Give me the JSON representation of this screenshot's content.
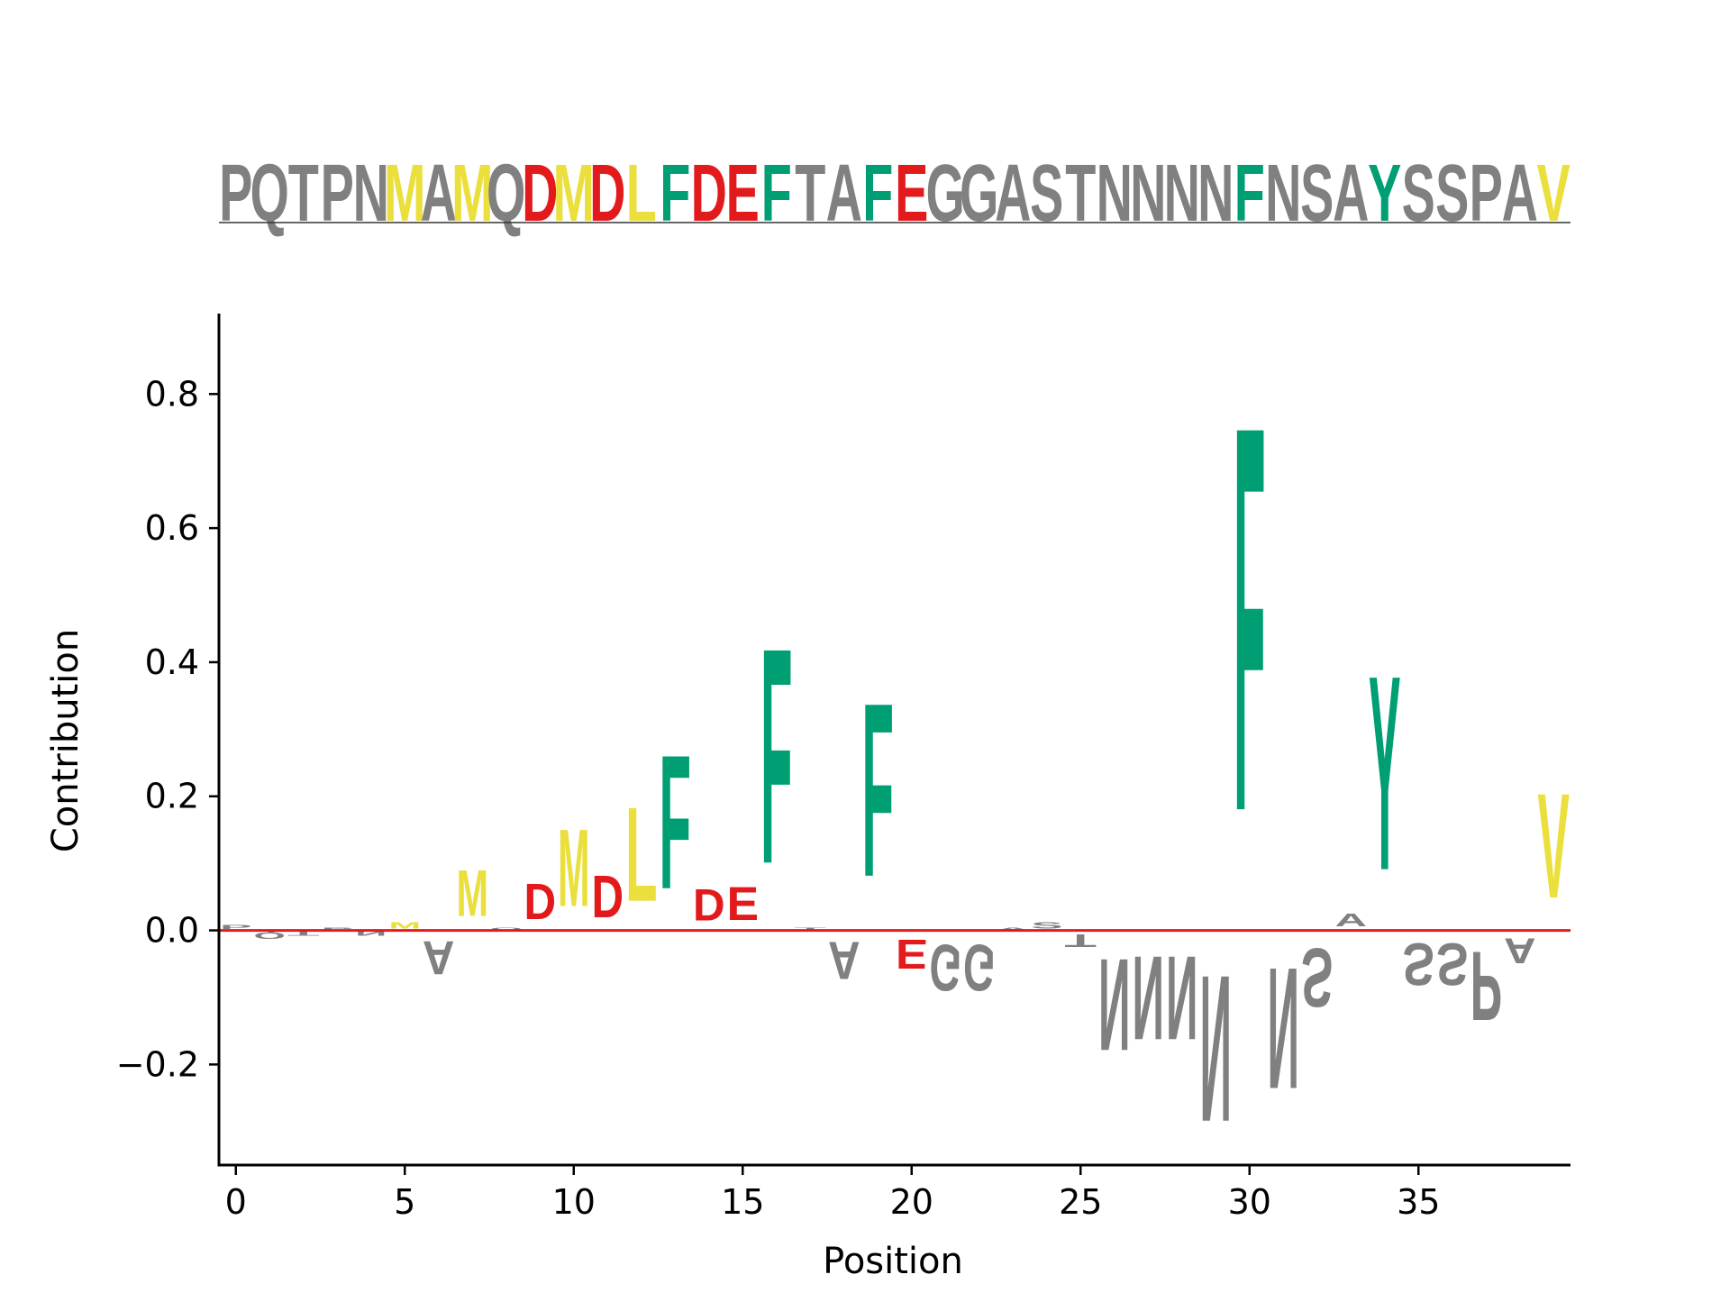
{
  "chart_data": {
    "type": "sequence_logo",
    "sequence": "PQTPNMAMQDMDLFDEFTAFEGGASTNNNNFNSAYSSPAV",
    "xlabel": "Position",
    "ylabel": "Contribution",
    "xlim": [
      -0.5,
      39.5
    ],
    "ylim": [
      -0.35,
      0.92
    ],
    "xticks": [
      0,
      5,
      10,
      15,
      20,
      25,
      30,
      35
    ],
    "yticks": [
      -0.2,
      0.0,
      0.2,
      0.4,
      0.6,
      0.8
    ],
    "ytick_labels": [
      "−0.2",
      "0.0",
      "0.2",
      "0.4",
      "0.6",
      "0.8"
    ],
    "baseline_color": "#e31a1c",
    "colors": {
      "hydrophobic": "#eadf3c",
      "acidic": "#e31a1c",
      "aromatic": "#009e73",
      "other": "#808080"
    },
    "residue_classes": {
      "M": "hydrophobic",
      "A": "other",
      "L": "hydrophobic",
      "V": "hydrophobic",
      "D": "acidic",
      "E": "acidic",
      "F": "aromatic",
      "Y": "aromatic",
      "W": "aromatic"
    },
    "contributions": [
      0.01,
      -0.015,
      -0.01,
      0.005,
      -0.01,
      0.015,
      -0.08,
      0.11,
      0.005,
      0.085,
      0.185,
      0.1,
      0.225,
      0.32,
      0.075,
      0.08,
      0.515,
      0.005,
      -0.09,
      0.415,
      -0.07,
      -0.11,
      -0.11,
      0.005,
      0.015,
      -0.03,
      -0.22,
      -0.2,
      -0.2,
      -0.35,
      0.92,
      -0.29,
      -0.14,
      0.03,
      0.465,
      -0.1,
      -0.1,
      -0.165,
      -0.06,
      0.25
    ]
  }
}
